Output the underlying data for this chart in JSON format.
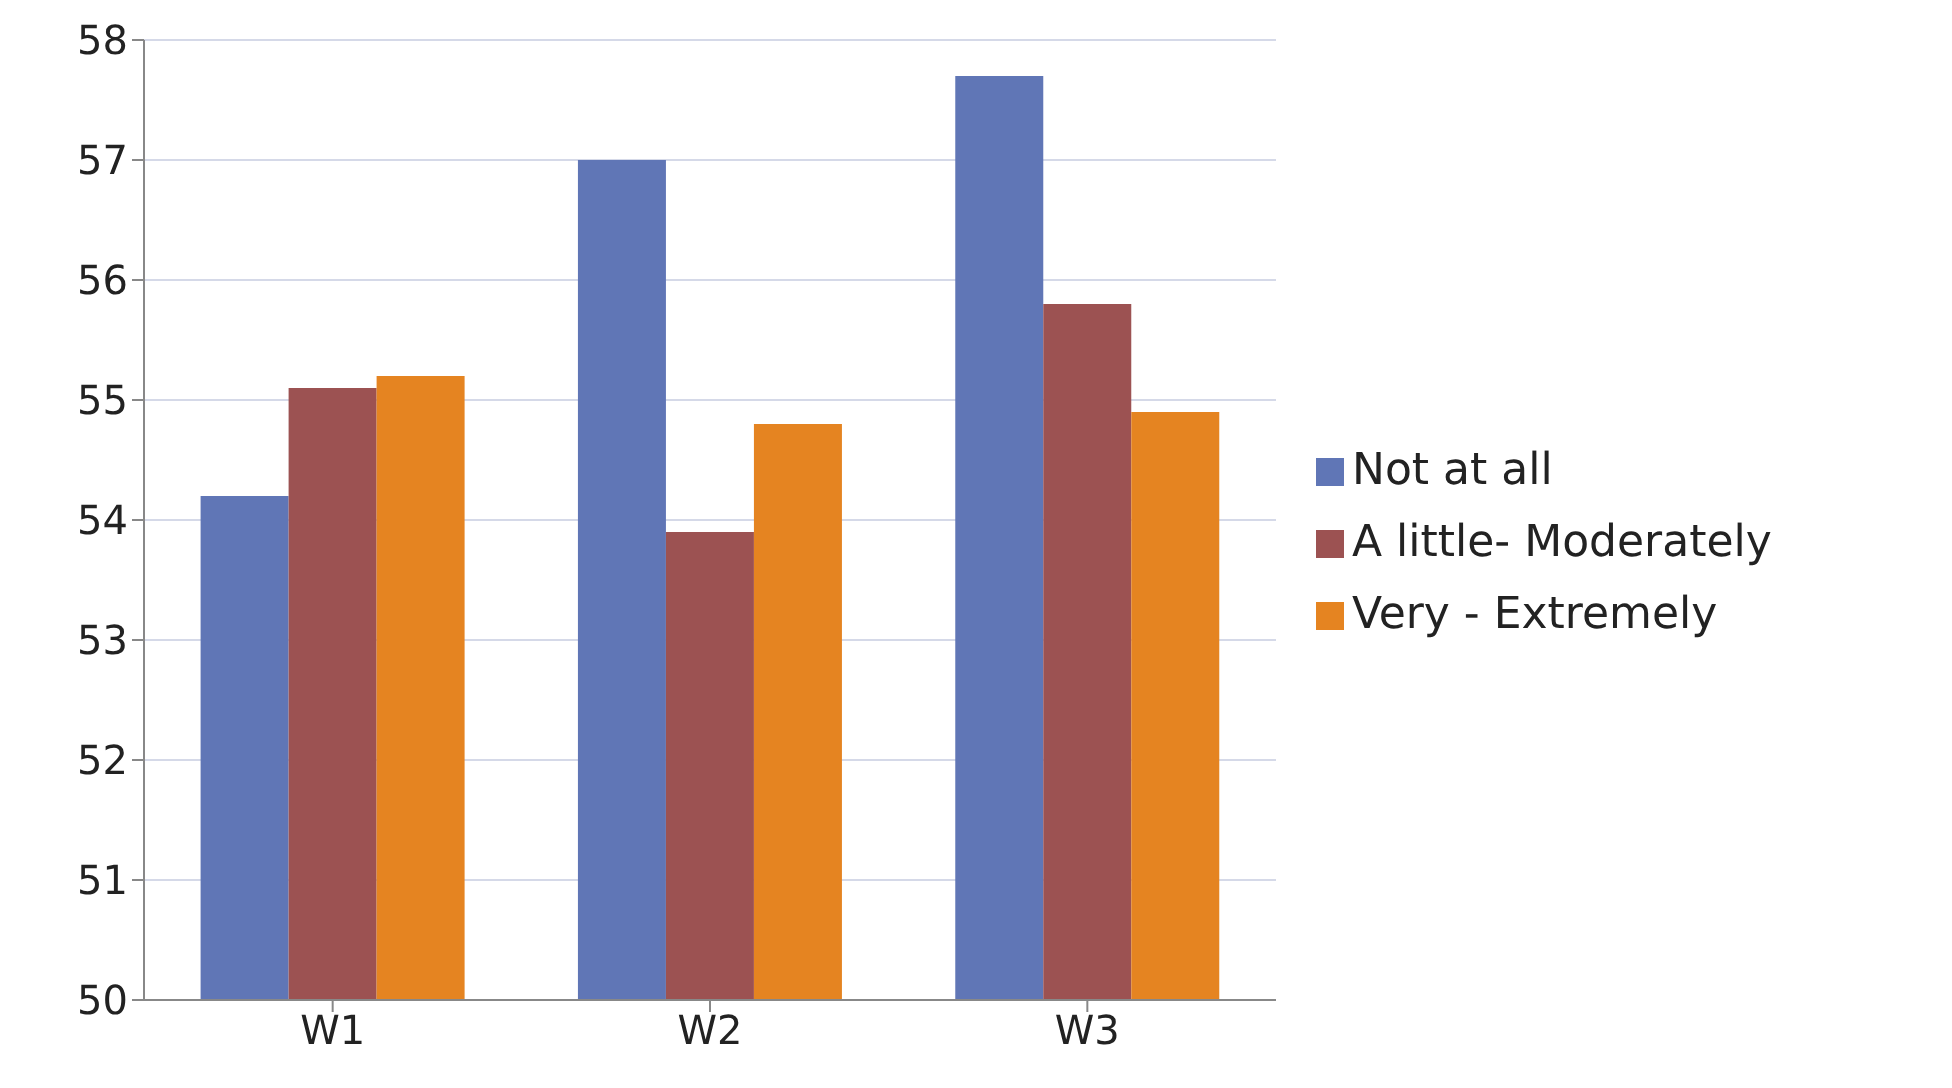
{
  "chart_data": {
    "type": "bar",
    "categories": [
      "W1",
      "W2",
      "W3"
    ],
    "series": [
      {
        "name": "Not at all",
        "color": "#6076b6",
        "values": [
          54.2,
          57.0,
          57.7
        ]
      },
      {
        "name": "A little- Moderately",
        "color": "#9c5252",
        "values": [
          55.1,
          53.9,
          55.8
        ]
      },
      {
        "name": "Very - Extremely",
        "color": "#e58421",
        "values": [
          55.2,
          54.8,
          54.9
        ]
      }
    ],
    "ylim": [
      50,
      58
    ],
    "yticks": [
      50,
      51,
      52,
      53,
      54,
      55,
      56,
      57,
      58
    ],
    "grid": "y",
    "legend": "right"
  }
}
